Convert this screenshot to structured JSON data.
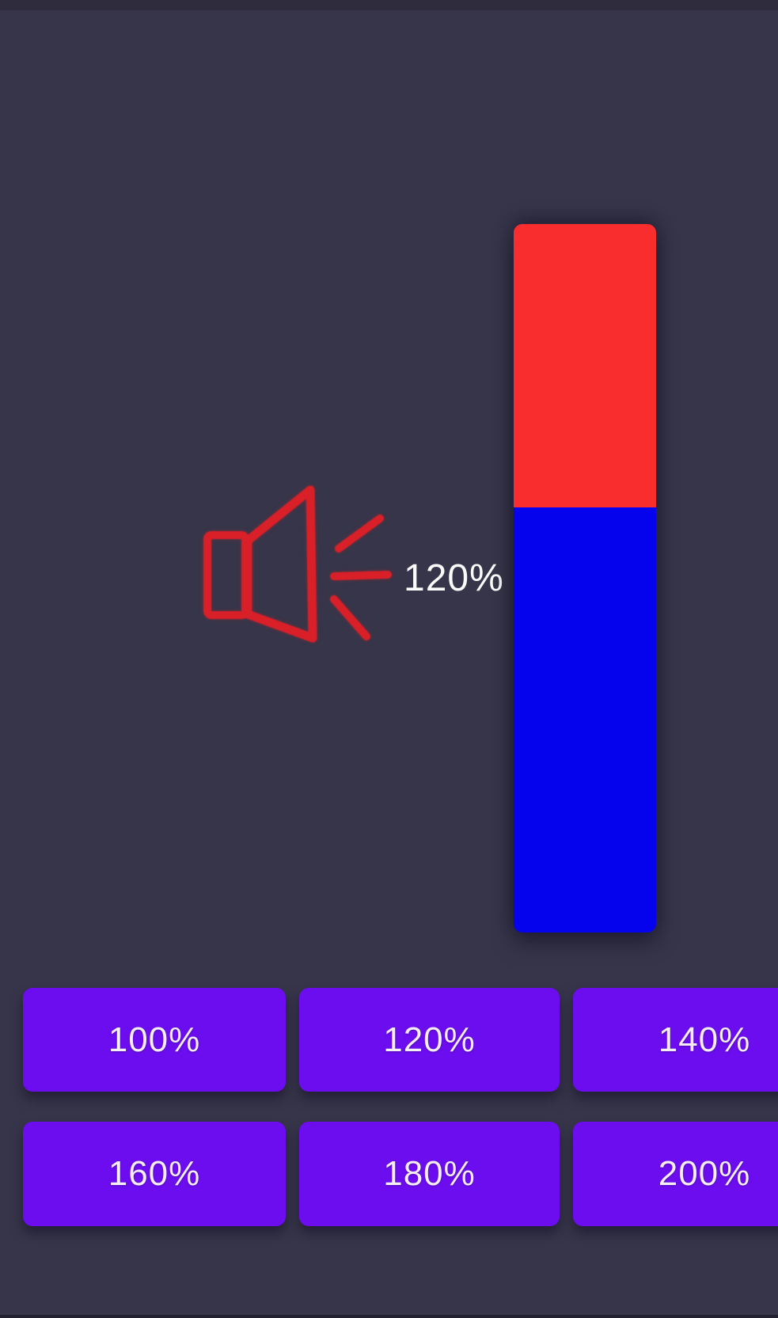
{
  "app": {
    "background_color": "#373549"
  },
  "volume_display": {
    "boost_label": "120%",
    "speaker_icon": "speaker-with-sound-waves",
    "icon_color": "#d92028",
    "label_color": "#fbfbfb",
    "level_bar": {
      "value_percent": 120,
      "max_percent": 200,
      "fill_color": "#0502ee",
      "remainder_color": "#f92d2d"
    }
  },
  "boost_buttons": {
    "background_color": "#6b0def",
    "label_color": "#f6eef6",
    "items": [
      {
        "label": "100%",
        "value_percent": 100
      },
      {
        "label": "120%",
        "value_percent": 120
      },
      {
        "label": "140%",
        "value_percent": 140
      },
      {
        "label": "160%",
        "value_percent": 160
      },
      {
        "label": "180%",
        "value_percent": 180
      },
      {
        "label": "200%",
        "value_percent": 200
      }
    ]
  }
}
